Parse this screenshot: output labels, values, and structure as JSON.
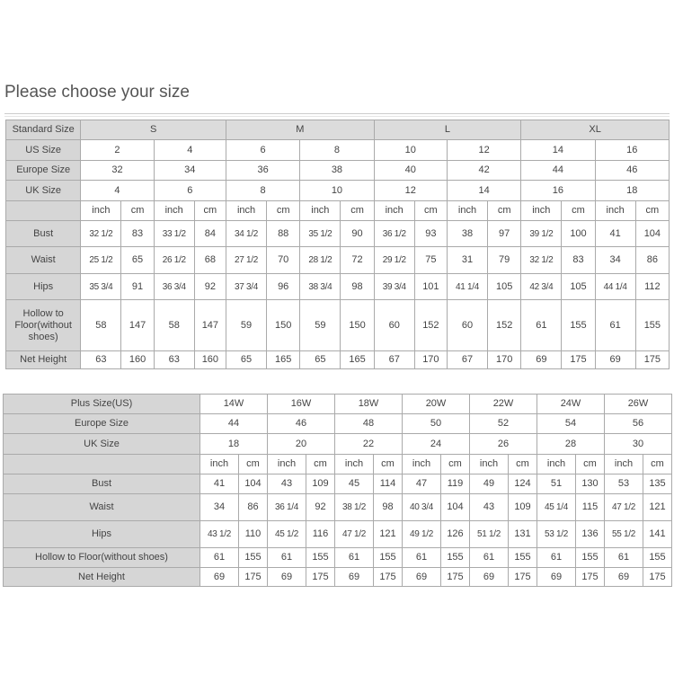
{
  "title": "Please choose your size",
  "table1": {
    "standard_label": "Standard Size",
    "standard_sizes": [
      "S",
      "M",
      "L",
      "XL"
    ],
    "us_label": "US Size",
    "us_sizes": [
      "2",
      "4",
      "6",
      "8",
      "10",
      "12",
      "14",
      "16"
    ],
    "europe_label": "Europe Size",
    "europe_sizes": [
      "32",
      "34",
      "36",
      "38",
      "40",
      "42",
      "44",
      "46"
    ],
    "uk_label": "UK Size",
    "uk_sizes": [
      "4",
      "6",
      "8",
      "10",
      "12",
      "14",
      "16",
      "18"
    ],
    "unit_inch": "inch",
    "unit_cm": "cm",
    "rows": [
      {
        "label": "Bust",
        "values": [
          "32 1/2",
          "83",
          "33 1/2",
          "84",
          "34 1/2",
          "88",
          "35 1/2",
          "90",
          "36 1/2",
          "93",
          "38",
          "97",
          "39 1/2",
          "100",
          "41",
          "104"
        ]
      },
      {
        "label": "Waist",
        "values": [
          "25 1/2",
          "65",
          "26 1/2",
          "68",
          "27 1/2",
          "70",
          "28 1/2",
          "72",
          "29 1/2",
          "75",
          "31",
          "79",
          "32 1/2",
          "83",
          "34",
          "86"
        ]
      },
      {
        "label": "Hips",
        "values": [
          "35 3/4",
          "91",
          "36 3/4",
          "92",
          "37 3/4",
          "96",
          "38 3/4",
          "98",
          "39 3/4",
          "101",
          "41 1/4",
          "105",
          "42 3/4",
          "105",
          "44 1/4",
          "112"
        ]
      },
      {
        "label": "Hollow to Floor(without shoes)",
        "values": [
          "58",
          "147",
          "58",
          "147",
          "59",
          "150",
          "59",
          "150",
          "60",
          "152",
          "60",
          "152",
          "61",
          "155",
          "61",
          "155"
        ]
      },
      {
        "label": "Net Height",
        "values": [
          "63",
          "160",
          "63",
          "160",
          "65",
          "165",
          "65",
          "165",
          "67",
          "170",
          "67",
          "170",
          "69",
          "175",
          "69",
          "175"
        ]
      }
    ]
  },
  "table2": {
    "plus_label": "Plus Size(US)",
    "plus_sizes": [
      "14W",
      "16W",
      "18W",
      "20W",
      "22W",
      "24W",
      "26W"
    ],
    "europe_label": "Europe Size",
    "europe_sizes": [
      "44",
      "46",
      "48",
      "50",
      "52",
      "54",
      "56"
    ],
    "uk_label": "UK Size",
    "uk_sizes": [
      "18",
      "20",
      "22",
      "24",
      "26",
      "28",
      "30"
    ],
    "unit_inch": "inch",
    "unit_cm": "cm",
    "rows": [
      {
        "label": "Bust",
        "values": [
          "41",
          "104",
          "43",
          "109",
          "45",
          "114",
          "47",
          "119",
          "49",
          "124",
          "51",
          "130",
          "53",
          "135"
        ]
      },
      {
        "label": "Waist",
        "values": [
          "34",
          "86",
          "36 1/4",
          "92",
          "38 1/2",
          "98",
          "40 3/4",
          "104",
          "43",
          "109",
          "45 1/4",
          "115",
          "47 1/2",
          "121"
        ]
      },
      {
        "label": "Hips",
        "values": [
          "43 1/2",
          "110",
          "45 1/2",
          "116",
          "47 1/2",
          "121",
          "49 1/2",
          "126",
          "51 1/2",
          "131",
          "53 1/2",
          "136",
          "55 1/2",
          "141"
        ]
      },
      {
        "label": "Hollow to Floor(without shoes)",
        "values": [
          "61",
          "155",
          "61",
          "155",
          "61",
          "155",
          "61",
          "155",
          "61",
          "155",
          "61",
          "155",
          "61",
          "155"
        ]
      },
      {
        "label": "Net Height",
        "values": [
          "69",
          "175",
          "69",
          "175",
          "69",
          "175",
          "69",
          "175",
          "69",
          "175",
          "69",
          "175",
          "69",
          "175"
        ]
      }
    ]
  }
}
